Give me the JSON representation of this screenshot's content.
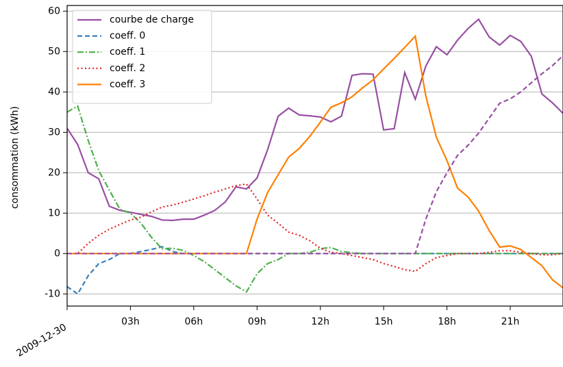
{
  "chart_data": {
    "type": "line",
    "ylabel": "consommation (kWh)",
    "x": [
      0,
      0.5,
      1,
      1.5,
      2,
      2.5,
      3,
      3.5,
      4,
      4.5,
      5,
      5.5,
      6,
      6.5,
      7,
      7.5,
      8,
      8.5,
      9,
      9.5,
      10,
      10.5,
      11,
      11.5,
      12,
      12.5,
      13,
      13.5,
      14,
      14.5,
      15,
      15.5,
      16,
      16.5,
      17,
      17.5,
      18,
      18.5,
      19,
      19.5,
      20,
      20.5,
      21,
      21.5,
      22,
      22.5,
      23,
      23.5
    ],
    "xlim": [
      0,
      23.5
    ],
    "xticks": [
      {
        "value": 0,
        "label": "2009-12-30"
      },
      {
        "value": 3,
        "label": "03h"
      },
      {
        "value": 6,
        "label": "06h"
      },
      {
        "value": 9,
        "label": "09h"
      },
      {
        "value": 12,
        "label": "12h"
      },
      {
        "value": 15,
        "label": "15h"
      },
      {
        "value": 18,
        "label": "18h"
      },
      {
        "value": 21,
        "label": "21h"
      }
    ],
    "ylim": [
      -13,
      61.4
    ],
    "yticks": [
      -10,
      0,
      10,
      20,
      30,
      40,
      50,
      60
    ],
    "grid": true,
    "legend": "upper left",
    "series": [
      {
        "name": "courbe de charge",
        "color": "#984ea3",
        "dash": "solid",
        "values": [
          31,
          27,
          20,
          18.5,
          11.7,
          10.7,
          10.2,
          9.7,
          9.2,
          8.3,
          8.2,
          8.5,
          8.5,
          9.5,
          10.7,
          12.8,
          16.5,
          16,
          18.7,
          25.7,
          34,
          36,
          34.3,
          34.1,
          33.8,
          32.6,
          34,
          44.1,
          44.5,
          44.4,
          30.6,
          30.9,
          44.8,
          38.2,
          46.4,
          51.2,
          49.2,
          52.8,
          55.7,
          58,
          53.6,
          51.6,
          54,
          52.5,
          48.8,
          39.5,
          37.3,
          34.7
        ]
      },
      {
        "name": "coeff. 0",
        "color": "#377eb8",
        "dash": "dashed",
        "values": [
          -8.2,
          -10,
          -5.5,
          -2.5,
          -1.5,
          0,
          0,
          0.5,
          1,
          1.7,
          0.5,
          0,
          0,
          0,
          0,
          0,
          0,
          0,
          0,
          0,
          0,
          0,
          0,
          0,
          0,
          0,
          0,
          0,
          0,
          0,
          0,
          0,
          0,
          0,
          0,
          0,
          0,
          0,
          0,
          0,
          0,
          0,
          0,
          0,
          0,
          0,
          0,
          0
        ]
      },
      {
        "name": "coeff. 1",
        "color": "#4daf4a",
        "dash": "dashdot",
        "values": [
          35,
          36.5,
          28,
          20.5,
          15.7,
          11,
          10,
          7.5,
          4,
          1.2,
          1.3,
          0.8,
          -0.5,
          -2,
          -4,
          -6,
          -8,
          -9.5,
          -5,
          -2.5,
          -1.5,
          0,
          0,
          0.3,
          1.2,
          1.5,
          0.5,
          0.2,
          0,
          0,
          0,
          0,
          0,
          0,
          0,
          0,
          0,
          0,
          0,
          0,
          0,
          0,
          0,
          0,
          0,
          0,
          0,
          0
        ]
      },
      {
        "name": "coeff. 2",
        "color": "#e41a1c",
        "dash": "dotted",
        "values": [
          0,
          0,
          2.5,
          4.5,
          6,
          7.2,
          8.3,
          9,
          10.3,
          11.5,
          12,
          12.7,
          13.5,
          14.3,
          15.2,
          16,
          16.8,
          17.2,
          13.5,
          9.5,
          7.5,
          5.3,
          4.5,
          3.2,
          1.3,
          0.3,
          0,
          -0.5,
          -1,
          -1.5,
          -2.5,
          -3.2,
          -4,
          -4.4,
          -2.5,
          -1,
          -0.5,
          0,
          0,
          0,
          0.3,
          0.7,
          0.7,
          0.3,
          0,
          -0.3,
          -0.3,
          0
        ]
      },
      {
        "name": "coeff. 3",
        "color": "#ff7f00",
        "dash": "solid",
        "values": [
          0,
          0,
          0,
          0,
          0,
          0,
          0,
          0,
          0,
          0,
          0,
          0,
          0,
          0,
          0,
          0,
          0,
          0,
          8.5,
          15.1,
          19.5,
          23.9,
          26,
          29,
          32.5,
          36.2,
          37.3,
          38.8,
          41,
          43,
          45.7,
          48.3,
          51,
          53.8,
          39,
          28.8,
          23,
          16.2,
          14,
          10.5,
          5.7,
          1.6,
          1.9,
          1,
          -1,
          -3,
          -6.5,
          -8.5
        ]
      },
      {
        "color": "#984ea3",
        "dash": "dashed",
        "values": [
          0,
          0,
          0,
          0,
          0,
          0,
          0,
          0,
          0,
          0,
          0,
          0,
          0,
          0,
          0,
          0,
          0,
          0,
          0,
          0,
          0,
          0,
          0,
          0,
          0,
          0,
          0,
          0,
          0,
          0,
          0,
          0,
          0,
          0,
          8.5,
          15.3,
          20,
          24.3,
          26.8,
          29.8,
          33.5,
          37.2,
          38.3,
          40,
          42.3,
          44.5,
          46.5,
          49
        ]
      }
    ]
  }
}
